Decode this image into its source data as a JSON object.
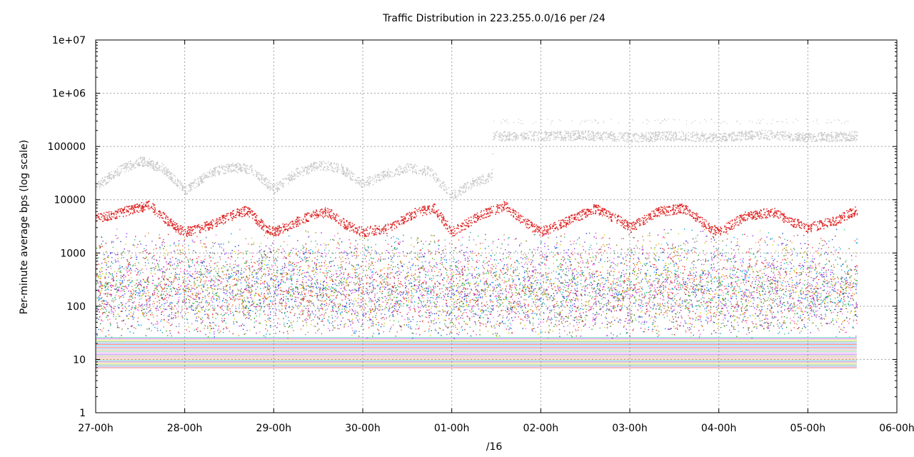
{
  "chart_data": {
    "type": "scatter",
    "title": "Traffic Distribution in 223.255.0.0/16 per /24",
    "xlabel": "/16",
    "ylabel": "Per-minute average bps (log scale)",
    "y_scale": "log",
    "ylim": [
      1,
      10000000
    ],
    "y_ticks": [
      "1",
      "10",
      "100",
      "1000",
      "10000",
      "100000",
      "1e+06",
      "1e+07"
    ],
    "x_ticks": [
      "27-00h",
      "28-00h",
      "29-00h",
      "30-00h",
      "01-00h",
      "02-00h",
      "03-00h",
      "04-00h",
      "05-00h",
      "06-00h"
    ],
    "xlim_days": [
      0,
      9
    ],
    "data_end_day": 8.55,
    "grid": true,
    "series": [
      {
        "color": "#c8c8c8",
        "description": "daily pattern ~15000-60000 bps until ~01-12h, then flat ~150000-170000 bps with sparse points ~300000",
        "points": [
          [
            0.0,
            18000
          ],
          [
            0.25,
            35000
          ],
          [
            0.5,
            55000
          ],
          [
            0.75,
            40000
          ],
          [
            1.0,
            15000
          ],
          [
            1.25,
            30000
          ],
          [
            1.5,
            42000
          ],
          [
            1.75,
            38000
          ],
          [
            2.0,
            16000
          ],
          [
            2.25,
            32000
          ],
          [
            2.5,
            45000
          ],
          [
            2.75,
            40000
          ],
          [
            3.0,
            20000
          ],
          [
            3.25,
            30000
          ],
          [
            3.5,
            40000
          ],
          [
            3.75,
            35000
          ],
          [
            4.0,
            12000
          ],
          [
            4.25,
            22000
          ],
          [
            4.45,
            28000
          ],
          [
            4.46,
            160000
          ],
          [
            5.0,
            160000
          ],
          [
            5.5,
            165000
          ],
          [
            6.0,
            150000
          ],
          [
            6.5,
            160000
          ],
          [
            7.0,
            150000
          ],
          [
            7.5,
            170000
          ],
          [
            8.0,
            150000
          ],
          [
            8.55,
            160000
          ]
        ]
      },
      {
        "color": "#e02020",
        "description": "daily pattern ~2000-9000 bps",
        "points": [
          [
            0.0,
            4500
          ],
          [
            0.3,
            6000
          ],
          [
            0.6,
            8000
          ],
          [
            0.9,
            3000
          ],
          [
            1.0,
            2500
          ],
          [
            1.3,
            3500
          ],
          [
            1.5,
            5000
          ],
          [
            1.7,
            6500
          ],
          [
            1.9,
            3000
          ],
          [
            2.0,
            2500
          ],
          [
            2.4,
            5000
          ],
          [
            2.6,
            6000
          ],
          [
            2.8,
            3500
          ],
          [
            3.0,
            2500
          ],
          [
            3.3,
            3000
          ],
          [
            3.6,
            6000
          ],
          [
            3.8,
            7000
          ],
          [
            4.0,
            2500
          ],
          [
            4.3,
            5000
          ],
          [
            4.6,
            8000
          ],
          [
            4.8,
            4000
          ],
          [
            5.0,
            2500
          ],
          [
            5.3,
            4000
          ],
          [
            5.6,
            7000
          ],
          [
            5.9,
            4000
          ],
          [
            6.0,
            3000
          ],
          [
            6.3,
            6000
          ],
          [
            6.6,
            7000
          ],
          [
            6.9,
            3000
          ],
          [
            7.0,
            2500
          ],
          [
            7.3,
            5000
          ],
          [
            7.6,
            6000
          ],
          [
            7.8,
            4000
          ],
          [
            8.0,
            3000
          ],
          [
            8.3,
            4000
          ],
          [
            8.55,
            6500
          ]
        ]
      }
    ],
    "background_noise": {
      "description": "dense multicolor points for many /24s, roughly 30-3000 bps",
      "ymin": 25,
      "ymax": 3000
    },
    "floor_lines": {
      "description": "constant horizontal lines from many /24s",
      "ymin": 7,
      "ymax": 26
    }
  }
}
